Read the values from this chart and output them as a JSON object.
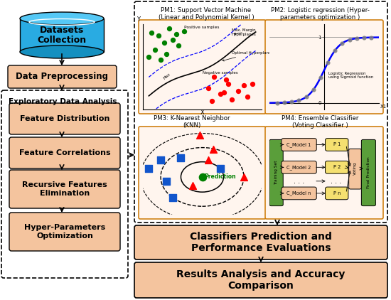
{
  "fig_width": 5.5,
  "fig_height": 4.22,
  "dpi": 100,
  "bg": "#ffffff",
  "bc": "#f4c49e",
  "db_body": "#29abe2",
  "db_top": "#55c8f5",
  "green_col": "#5a9e3a",
  "yellow_col": "#f5e070",
  "db_title": "Datasets\nCollection",
  "preprocess": "Data Preprocessing",
  "eda_title": "Exploratory Data Analysis",
  "eda_boxes": [
    "Feature Distribution",
    "Feature Correlations",
    "Recursive Features\nElimination",
    "Hyper-Parameters\nOptimization"
  ],
  "pm1_title": "PM1: Support Vector Machine\n(Linear and Polynomial Kernel )",
  "pm2_title": "PM2: Logistic regression (Hyper-\nparameters optimization )",
  "pm3_title": "PM3: K-Nearest Neighbor\n(KNN)",
  "pm4_title": "PM4: Ensemble Classifier\n(Voting Classifier )",
  "clf_box": "Classifiers Prediction and\nPerformance Evaluations",
  "res_box": "Results Analysis and Accuracy\nComparison",
  "sig_text": "Logistic Regression\nusing Sigmoid function",
  "knn_text": "Prediction",
  "pm4_cmodels": [
    "C_Model 1",
    "C_Model 2",
    "C_Model n"
  ],
  "pm4_p": [
    "P 1",
    "P 2",
    "P n"
  ],
  "training_set": "Training Set",
  "voting": "Voting",
  "final_pred": "Final Prediction",
  "svm_pos": "Positive samples",
  "svm_max": "Max. Margin\nHyperplanes",
  "svm_opt": "Optimal Hyperplane",
  "svm_neg": "Negative samples",
  "svm_max_lbl": "Max"
}
